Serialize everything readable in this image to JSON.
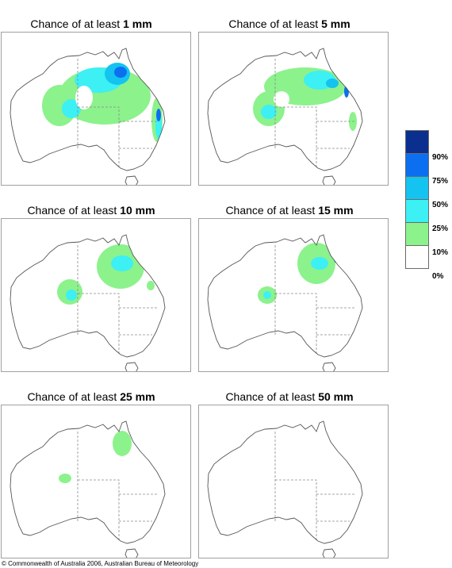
{
  "panels": [
    {
      "prefix": "Chance of at least ",
      "amount": "1 mm"
    },
    {
      "prefix": "Chance of at least ",
      "amount": "5 mm"
    },
    {
      "prefix": "Chance of at least ",
      "amount": "10 mm"
    },
    {
      "prefix": "Chance of at least ",
      "amount": "15 mm"
    },
    {
      "prefix": "Chance of at least ",
      "amount": "25 mm"
    },
    {
      "prefix": "Chance of at least ",
      "amount": "50 mm"
    }
  ],
  "legend": {
    "swatches": [
      {
        "color": "#0a2f8f"
      },
      {
        "color": "#0c6ff0"
      },
      {
        "color": "#14c3ef"
      },
      {
        "color": "#3cf0f4"
      },
      {
        "color": "#8cf28c"
      },
      {
        "color": "#ffffff"
      }
    ],
    "labels": [
      "90%",
      "75%",
      "50%",
      "25%",
      "10%",
      "0%"
    ]
  },
  "copyright": "© Commonwealth of Australia 2006, Australian Bureau of Meteorology"
}
